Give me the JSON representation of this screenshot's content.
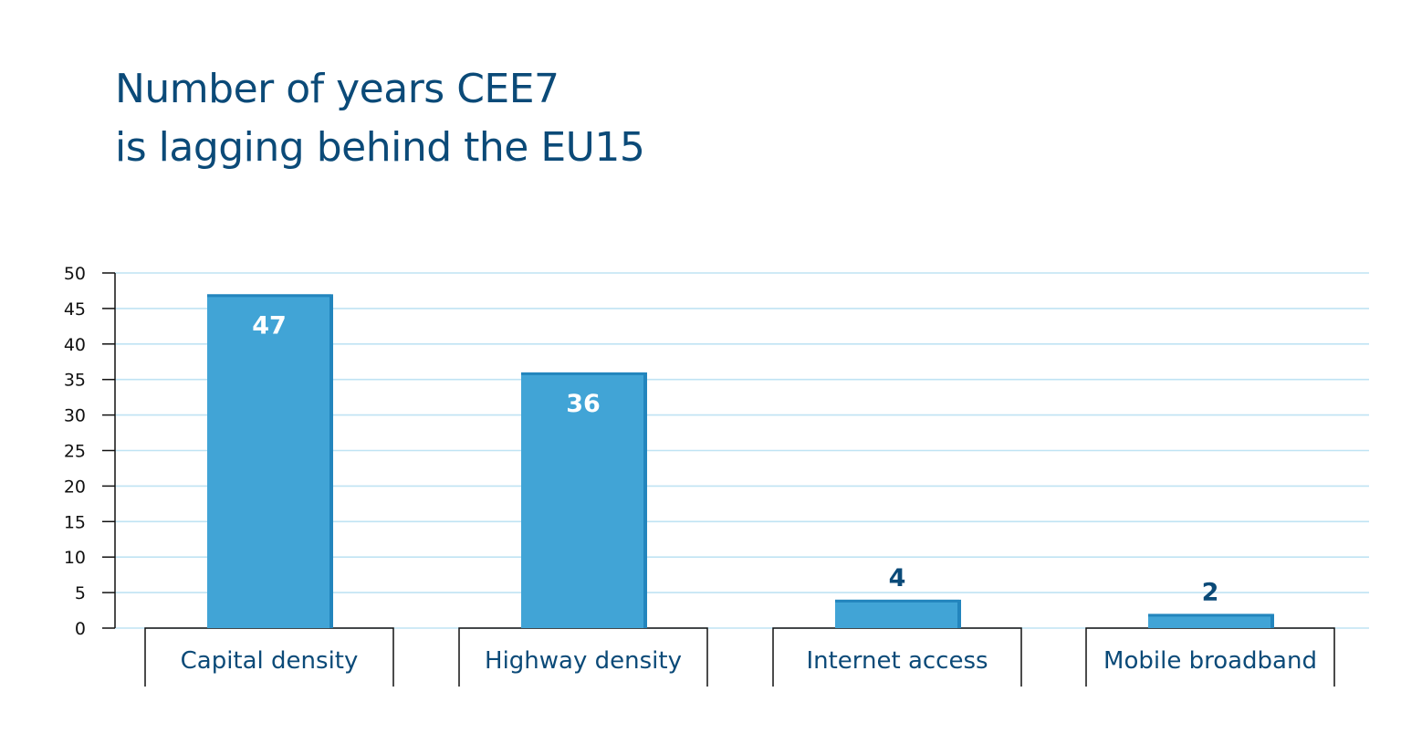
{
  "title_lines": [
    "Number of years CEE7",
    "is lagging behind the EU15"
  ],
  "colors": {
    "bar": "#41a4d6",
    "bar_edge": "#2385bd",
    "title": "#0b4a78",
    "grid": "#bfe3f3",
    "axis": "#111111"
  },
  "chart_data": {
    "type": "bar",
    "categories": [
      "Capital density",
      "Highway density",
      "Internet access",
      "Mobile broadband"
    ],
    "values": [
      47,
      36,
      4,
      2
    ],
    "ylim": [
      0,
      50
    ],
    "yticks": [
      0,
      5,
      10,
      15,
      20,
      25,
      30,
      35,
      40,
      45,
      50
    ],
    "grid": true,
    "legend": false
  }
}
